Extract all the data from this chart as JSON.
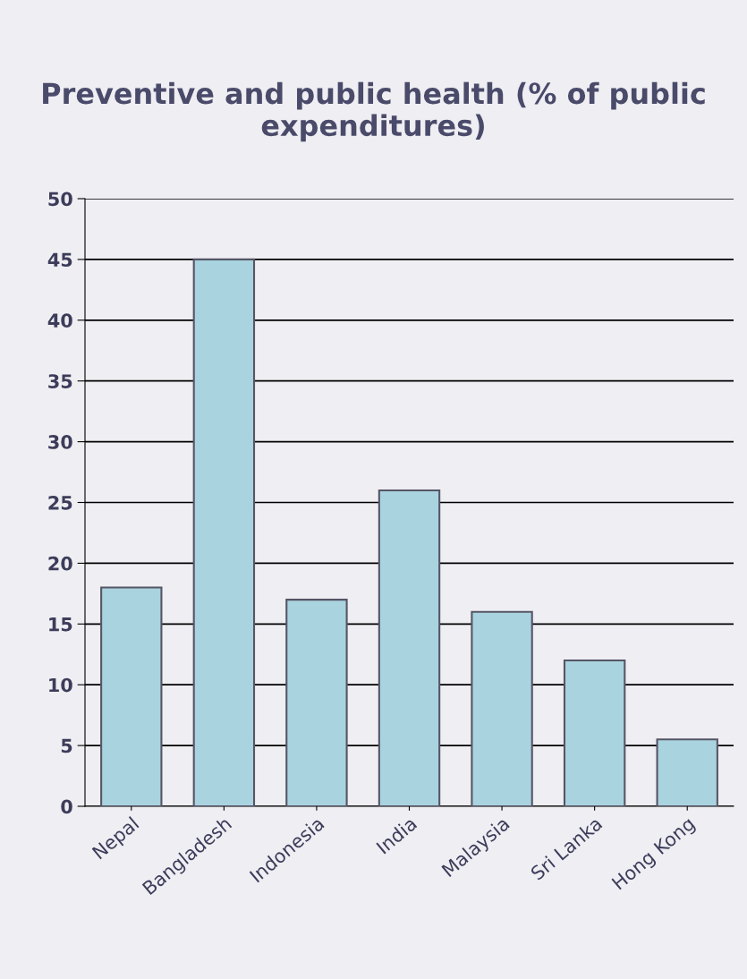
{
  "chart_data": {
    "type": "bar",
    "title": "Preventive and public health (% of public expenditures)",
    "categories": [
      "Nepal",
      "Bangladesh",
      "Indonesia",
      "India",
      "Malaysia",
      "Sri Lanka",
      "Hong Kong"
    ],
    "values": [
      18,
      45,
      17,
      26,
      16,
      12,
      5.5
    ],
    "color": "#a9d3df",
    "ylim": [
      0,
      50
    ],
    "yticks": [
      0,
      5,
      10,
      15,
      20,
      25,
      30,
      35,
      40,
      45,
      50
    ],
    "grid": "y"
  }
}
